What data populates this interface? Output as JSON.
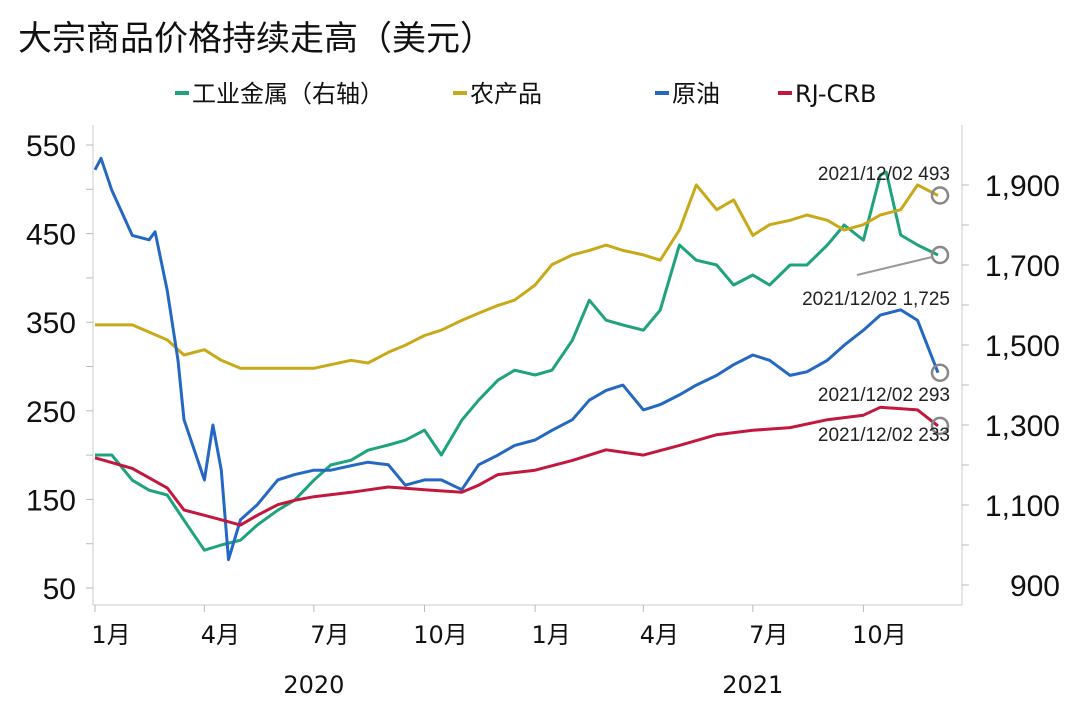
{
  "chart_data": {
    "type": "line",
    "title": "大宗商品价格持续走高（美元）",
    "legend_position": "top",
    "grid": false,
    "left_axis": {
      "ylim": [
        50,
        550
      ],
      "ticks": [
        "550",
        "450",
        "350",
        "250",
        "150",
        "50"
      ],
      "tick_values": [
        550,
        450,
        350,
        250,
        150,
        50
      ]
    },
    "right_axis": {
      "ylim": [
        900,
        1950
      ],
      "ticks": [
        "1,900",
        "1,700",
        "1,500",
        "1,300",
        "1,100",
        "900"
      ],
      "tick_values": [
        1900,
        1700,
        1500,
        1300,
        1100,
        900
      ]
    },
    "x_axis": {
      "range": [
        "2020-01-01",
        "2021-12-02"
      ],
      "ticks": [
        {
          "date": "2020-01-01",
          "label": "1月"
        },
        {
          "date": "2020-04-01",
          "label": "4月"
        },
        {
          "date": "2020-07-01",
          "label": "7月"
        },
        {
          "date": "2020-10-01",
          "label": "10月"
        },
        {
          "date": "2021-01-01",
          "label": "1月"
        },
        {
          "date": "2021-04-01",
          "label": "4月"
        },
        {
          "date": "2021-07-01",
          "label": "7月"
        },
        {
          "date": "2021-10-01",
          "label": "10月"
        }
      ],
      "years": [
        {
          "date": "2020-07-01",
          "label": "2020"
        },
        {
          "date": "2021-07-01",
          "label": "2021"
        }
      ]
    },
    "series": [
      {
        "name": "工业金属（右轴）",
        "axis": "right",
        "color": "#1ea37c",
        "points": [
          [
            "2020-01-01",
            1225
          ],
          [
            "2020-01-15",
            1225
          ],
          [
            "2020-02-01",
            1162
          ],
          [
            "2020-02-15",
            1137
          ],
          [
            "2020-03-01",
            1125
          ],
          [
            "2020-03-15",
            1062
          ],
          [
            "2020-04-01",
            987
          ],
          [
            "2020-04-15",
            1000
          ],
          [
            "2020-05-01",
            1012
          ],
          [
            "2020-05-15",
            1050
          ],
          [
            "2020-06-01",
            1087
          ],
          [
            "2020-06-15",
            1112
          ],
          [
            "2020-07-01",
            1162
          ],
          [
            "2020-07-15",
            1200
          ],
          [
            "2020-08-01",
            1212
          ],
          [
            "2020-08-15",
            1237
          ],
          [
            "2020-09-01",
            1250
          ],
          [
            "2020-09-15",
            1262
          ],
          [
            "2020-10-01",
            1287
          ],
          [
            "2020-10-15",
            1225
          ],
          [
            "2020-11-01",
            1312
          ],
          [
            "2020-11-15",
            1362
          ],
          [
            "2020-12-01",
            1412
          ],
          [
            "2020-12-15",
            1437
          ],
          [
            "2021-01-01",
            1425
          ],
          [
            "2021-01-15",
            1437
          ],
          [
            "2021-02-01",
            1512
          ],
          [
            "2021-02-15",
            1612
          ],
          [
            "2021-03-01",
            1562
          ],
          [
            "2021-03-15",
            1550
          ],
          [
            "2021-04-01",
            1537
          ],
          [
            "2021-04-15",
            1587
          ],
          [
            "2021-05-01",
            1750
          ],
          [
            "2021-05-15",
            1712
          ],
          [
            "2021-06-01",
            1700
          ],
          [
            "2021-06-15",
            1650
          ],
          [
            "2021-07-01",
            1675
          ],
          [
            "2021-07-15",
            1650
          ],
          [
            "2021-08-01",
            1700
          ],
          [
            "2021-08-15",
            1700
          ],
          [
            "2021-09-01",
            1750
          ],
          [
            "2021-09-15",
            1800
          ],
          [
            "2021-10-01",
            1762
          ],
          [
            "2021-10-15",
            1925
          ],
          [
            "2021-10-20",
            1932
          ],
          [
            "2021-11-01",
            1775
          ],
          [
            "2021-11-15",
            1750
          ],
          [
            "2021-12-02",
            1725
          ]
        ]
      },
      {
        "name": "农产品",
        "axis": "left",
        "color": "#c9a91a",
        "points": [
          [
            "2020-01-01",
            347
          ],
          [
            "2020-02-01",
            347
          ],
          [
            "2020-03-01",
            330
          ],
          [
            "2020-03-15",
            313
          ],
          [
            "2020-04-01",
            319
          ],
          [
            "2020-04-15",
            307
          ],
          [
            "2020-05-01",
            298
          ],
          [
            "2020-06-01",
            298
          ],
          [
            "2020-07-01",
            298
          ],
          [
            "2020-07-15",
            302
          ],
          [
            "2020-08-01",
            307
          ],
          [
            "2020-08-15",
            304
          ],
          [
            "2020-09-01",
            316
          ],
          [
            "2020-09-15",
            324
          ],
          [
            "2020-10-01",
            335
          ],
          [
            "2020-10-15",
            341
          ],
          [
            "2020-11-01",
            352
          ],
          [
            "2020-11-15",
            360
          ],
          [
            "2020-12-01",
            369
          ],
          [
            "2020-12-15",
            375
          ],
          [
            "2021-01-01",
            392
          ],
          [
            "2021-01-15",
            415
          ],
          [
            "2021-02-01",
            426
          ],
          [
            "2021-02-15",
            431
          ],
          [
            "2021-03-01",
            437
          ],
          [
            "2021-03-15",
            431
          ],
          [
            "2021-04-01",
            426
          ],
          [
            "2021-04-15",
            420
          ],
          [
            "2021-05-01",
            454
          ],
          [
            "2021-05-15",
            505
          ],
          [
            "2021-06-01",
            477
          ],
          [
            "2021-06-15",
            488
          ],
          [
            "2021-07-01",
            448
          ],
          [
            "2021-07-15",
            460
          ],
          [
            "2021-08-01",
            465
          ],
          [
            "2021-08-15",
            471
          ],
          [
            "2021-09-01",
            465
          ],
          [
            "2021-09-15",
            454
          ],
          [
            "2021-10-01",
            460
          ],
          [
            "2021-10-15",
            471
          ],
          [
            "2021-11-01",
            477
          ],
          [
            "2021-11-15",
            505
          ],
          [
            "2021-12-02",
            493
          ]
        ]
      },
      {
        "name": "原油",
        "axis": "left",
        "color": "#2468c2",
        "points": [
          [
            "2020-01-01",
            522
          ],
          [
            "2020-01-06",
            535
          ],
          [
            "2020-01-15",
            499
          ],
          [
            "2020-02-01",
            448
          ],
          [
            "2020-02-15",
            443
          ],
          [
            "2020-02-20",
            452
          ],
          [
            "2020-03-01",
            386
          ],
          [
            "2020-03-10",
            307
          ],
          [
            "2020-03-15",
            240
          ],
          [
            "2020-04-01",
            172
          ],
          [
            "2020-04-08",
            234
          ],
          [
            "2020-04-15",
            183
          ],
          [
            "2020-04-21",
            82
          ],
          [
            "2020-05-01",
            127
          ],
          [
            "2020-05-15",
            144
          ],
          [
            "2020-06-01",
            172
          ],
          [
            "2020-06-15",
            178
          ],
          [
            "2020-07-01",
            183
          ],
          [
            "2020-07-15",
            183
          ],
          [
            "2020-08-01",
            188
          ],
          [
            "2020-08-15",
            192
          ],
          [
            "2020-09-01",
            189
          ],
          [
            "2020-09-15",
            166
          ],
          [
            "2020-10-01",
            172
          ],
          [
            "2020-10-15",
            172
          ],
          [
            "2020-11-01",
            161
          ],
          [
            "2020-11-15",
            189
          ],
          [
            "2020-12-01",
            200
          ],
          [
            "2020-12-15",
            211
          ],
          [
            "2021-01-01",
            217
          ],
          [
            "2021-01-15",
            228
          ],
          [
            "2021-02-01",
            240
          ],
          [
            "2021-02-15",
            262
          ],
          [
            "2021-03-01",
            273
          ],
          [
            "2021-03-15",
            279
          ],
          [
            "2021-04-01",
            251
          ],
          [
            "2021-04-15",
            257
          ],
          [
            "2021-05-01",
            268
          ],
          [
            "2021-05-15",
            279
          ],
          [
            "2021-06-01",
            290
          ],
          [
            "2021-06-15",
            302
          ],
          [
            "2021-07-01",
            313
          ],
          [
            "2021-07-15",
            307
          ],
          [
            "2021-08-01",
            290
          ],
          [
            "2021-08-15",
            294
          ],
          [
            "2021-09-01",
            307
          ],
          [
            "2021-09-15",
            324
          ],
          [
            "2021-10-01",
            341
          ],
          [
            "2021-10-15",
            358
          ],
          [
            "2021-11-01",
            364
          ],
          [
            "2021-11-15",
            352
          ],
          [
            "2021-12-02",
            293
          ]
        ]
      },
      {
        "name": "RJ-CRB",
        "axis": "left",
        "color": "#c2183e",
        "points": [
          [
            "2020-01-01",
            197
          ],
          [
            "2020-02-01",
            185
          ],
          [
            "2020-03-01",
            163
          ],
          [
            "2020-03-15",
            138
          ],
          [
            "2020-04-01",
            132
          ],
          [
            "2020-04-15",
            127
          ],
          [
            "2020-05-01",
            121
          ],
          [
            "2020-05-15",
            132
          ],
          [
            "2020-06-01",
            144
          ],
          [
            "2020-06-15",
            149
          ],
          [
            "2020-07-01",
            153
          ],
          [
            "2020-08-01",
            158
          ],
          [
            "2020-09-01",
            164
          ],
          [
            "2020-10-01",
            161
          ],
          [
            "2020-11-01",
            158
          ],
          [
            "2020-11-15",
            166
          ],
          [
            "2020-12-01",
            178
          ],
          [
            "2021-01-01",
            183
          ],
          [
            "2021-02-01",
            194
          ],
          [
            "2021-03-01",
            206
          ],
          [
            "2021-04-01",
            200
          ],
          [
            "2021-05-01",
            211
          ],
          [
            "2021-06-01",
            223
          ],
          [
            "2021-07-01",
            228
          ],
          [
            "2021-08-01",
            231
          ],
          [
            "2021-09-01",
            240
          ],
          [
            "2021-10-01",
            245
          ],
          [
            "2021-10-15",
            254
          ],
          [
            "2021-11-15",
            251
          ],
          [
            "2021-12-02",
            233
          ]
        ]
      }
    ],
    "annotations": [
      {
        "series": "农产品",
        "text": "2021/12/02 493"
      },
      {
        "series": "工业金属（右轴）",
        "text": "2021/12/02 1,725"
      },
      {
        "series": "原油",
        "text": "2021/12/02 293"
      },
      {
        "series": "RJ-CRB",
        "text": "2021/12/02 233"
      }
    ]
  }
}
